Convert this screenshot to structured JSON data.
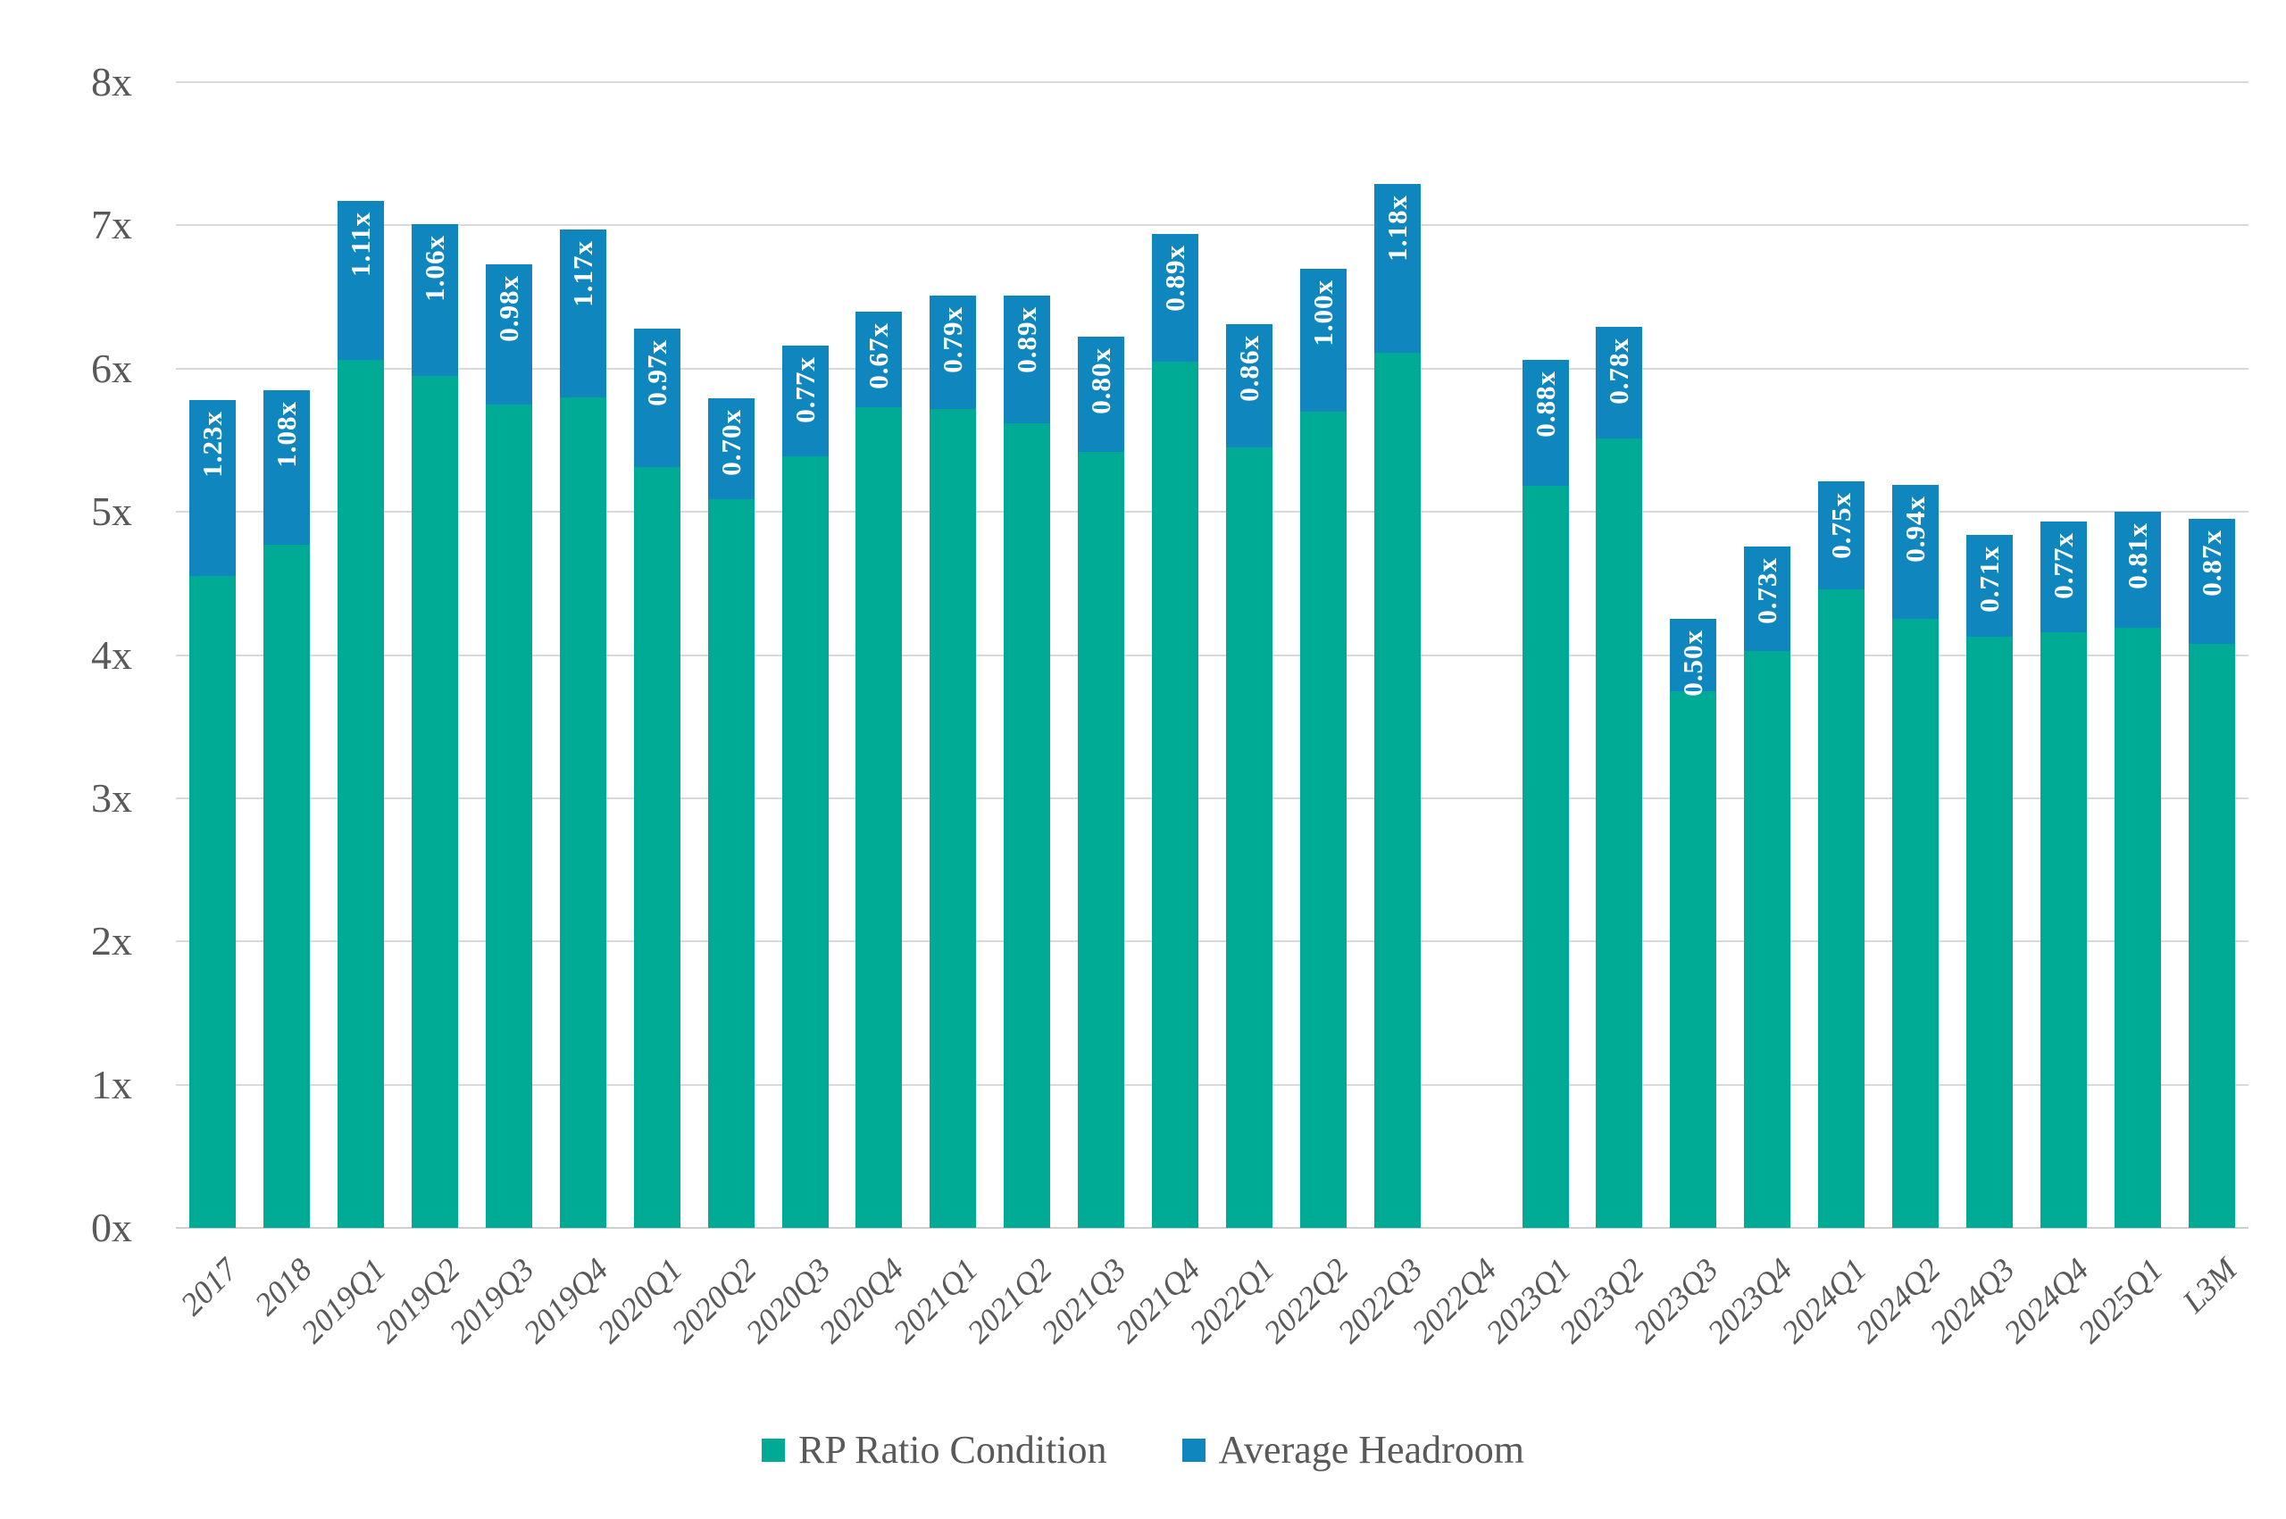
{
  "chart_data": {
    "type": "bar",
    "stacked": true,
    "title": "",
    "xlabel": "",
    "ylabel": "",
    "ylim": [
      0,
      8
    ],
    "yticks": [
      "0x",
      "1x",
      "2x",
      "3x",
      "4x",
      "5x",
      "6x",
      "7x",
      "8x"
    ],
    "grid": true,
    "legend_position": "bottom",
    "categories": [
      "2017",
      "2018",
      "2019Q1",
      "2019Q2",
      "2019Q3",
      "2019Q4",
      "2020Q1",
      "2020Q2",
      "2020Q3",
      "2020Q4",
      "2021Q1",
      "2021Q2",
      "2021Q3",
      "2021Q4",
      "2022Q1",
      "2022Q2",
      "2022Q3",
      "2022Q4",
      "2023Q1",
      "2023Q2",
      "2023Q3",
      "2023Q4",
      "2024Q1",
      "2024Q2",
      "2024Q3",
      "2024Q4",
      "2025Q1",
      "L3M"
    ],
    "series": [
      {
        "name": "RP Ratio Condition",
        "color": "#00ab96",
        "values": [
          4.55,
          4.77,
          6.06,
          5.95,
          5.75,
          5.8,
          5.31,
          5.09,
          5.39,
          5.73,
          5.72,
          5.62,
          5.42,
          6.05,
          5.45,
          5.7,
          6.11,
          null,
          5.18,
          5.51,
          3.75,
          4.03,
          4.46,
          4.25,
          4.13,
          4.16,
          4.19,
          4.08
        ]
      },
      {
        "name": "Average Headroom",
        "color": "#0f87be",
        "values": [
          1.23,
          1.08,
          1.11,
          1.06,
          0.98,
          1.17,
          0.97,
          0.7,
          0.77,
          0.67,
          0.79,
          0.89,
          0.8,
          0.89,
          0.86,
          1.0,
          1.18,
          null,
          0.88,
          0.78,
          0.5,
          0.73,
          0.75,
          0.94,
          0.71,
          0.77,
          0.81,
          0.87
        ],
        "data_labels": [
          "1.23x",
          "1.08x",
          "1.11x",
          "1.06x",
          "0.98x",
          "1.17x",
          "0.97x",
          "0.70x",
          "0.77x",
          "0.67x",
          "0.79x",
          "0.89x",
          "0.80x",
          "0.89x",
          "0.86x",
          "1.00x",
          "1.18x",
          null,
          "0.88x",
          "0.78x",
          "0.50x",
          "0.73x",
          "0.75x",
          "0.94x",
          "0.71x",
          "0.77x",
          "0.81x",
          "0.87x"
        ]
      }
    ]
  },
  "legend": {
    "items": [
      {
        "label": "RP Ratio Condition",
        "color": "#00ab96"
      },
      {
        "label": "Average Headroom",
        "color": "#0f87be"
      }
    ]
  },
  "colors": {
    "gridline": "#d9d9d9",
    "axis_text": "#595959",
    "data_label_text": "#ffffff",
    "background": "#ffffff"
  }
}
